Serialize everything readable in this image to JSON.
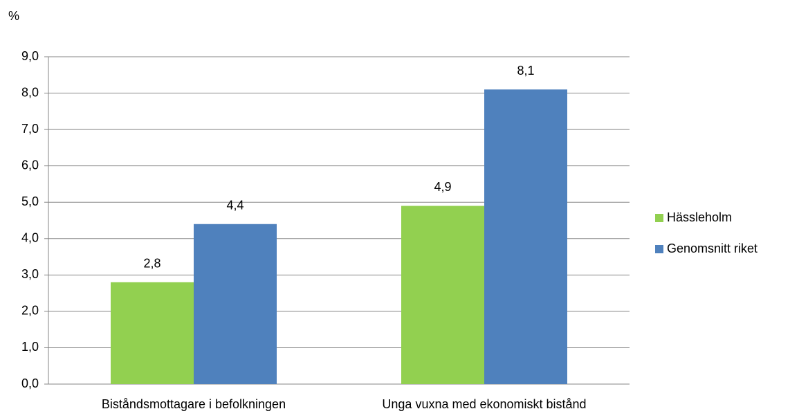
{
  "chart_data": {
    "type": "bar",
    "y_label": "%",
    "categories": [
      "Biståndsmottagare i befolkningen",
      "Unga vuxna med ekonomiskt bistånd"
    ],
    "series": [
      {
        "name": "Hässleholm",
        "color": "#92d050",
        "values": [
          2.8,
          4.9
        ],
        "value_labels": [
          "2,8",
          "4,9"
        ]
      },
      {
        "name": "Genomsnitt riket",
        "color": "#4f81bd",
        "values": [
          4.4,
          8.1
        ],
        "value_labels": [
          "4,4",
          "8,1"
        ]
      }
    ],
    "ylim": [
      0,
      9
    ],
    "yticks": [
      {
        "value": 0,
        "label": "0,0"
      },
      {
        "value": 1,
        "label": "1,0"
      },
      {
        "value": 2,
        "label": "2,0"
      },
      {
        "value": 3,
        "label": "3,0"
      },
      {
        "value": 4,
        "label": "4,0"
      },
      {
        "value": 5,
        "label": "5,0"
      },
      {
        "value": 6,
        "label": "6,0"
      },
      {
        "value": 7,
        "label": "7,0"
      },
      {
        "value": 8,
        "label": "8,0"
      },
      {
        "value": 9,
        "label": "9,0"
      }
    ],
    "grid": true,
    "legend": "right"
  }
}
